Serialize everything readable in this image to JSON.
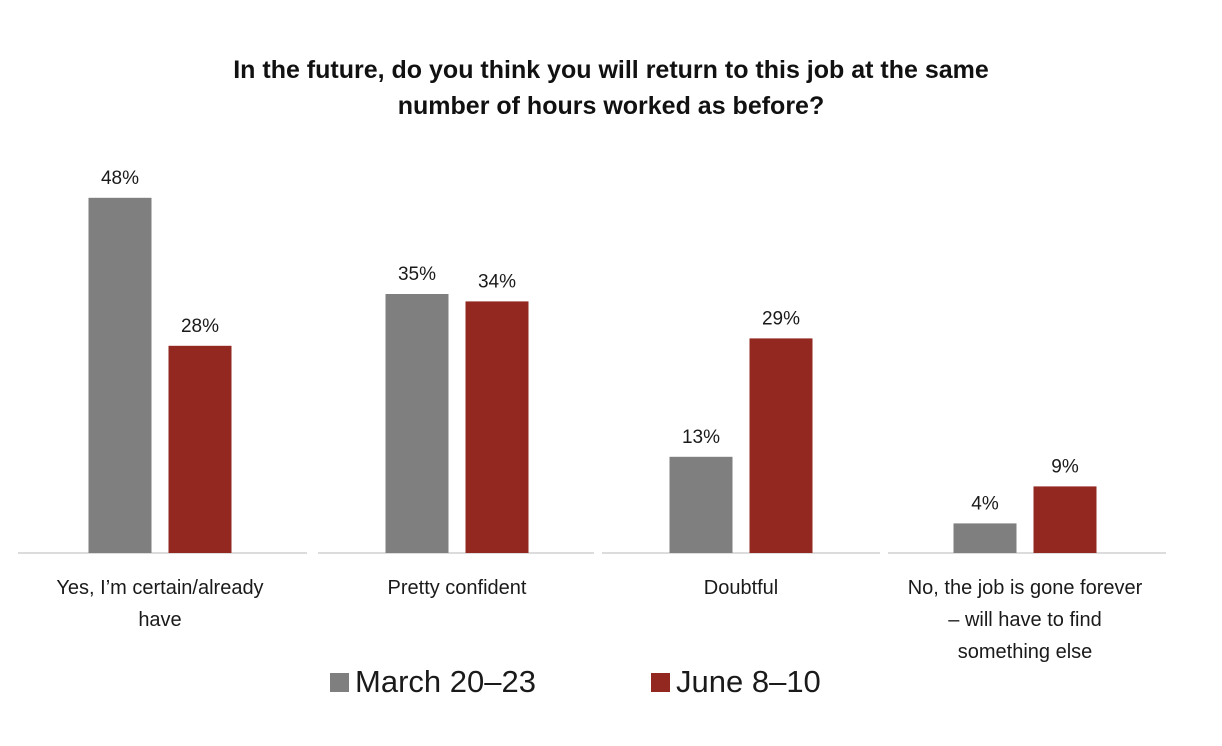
{
  "chart_data": {
    "type": "bar",
    "title_lines": [
      "In the future, do you think you will return to this job at the same",
      "number of hours worked as before?"
    ],
    "categories": [
      [
        "Yes, I’m certain/already",
        "have"
      ],
      [
        "Pretty confident"
      ],
      [
        "Doubtful"
      ],
      [
        "No, the job is gone forever",
        "– will have to find",
        "something else"
      ]
    ],
    "series": [
      {
        "name": "March 20–23",
        "color": "#7f7f7f",
        "values": [
          48,
          35,
          13,
          4
        ],
        "labels": [
          "48%",
          "35%",
          "13%",
          "4%"
        ]
      },
      {
        "name": "June 8–10",
        "color": "#922820",
        "values": [
          28,
          34,
          29,
          9
        ],
        "labels": [
          "28%",
          "34%",
          "29%",
          "9%"
        ]
      }
    ],
    "ylim": [
      0,
      50
    ],
    "grid": false,
    "legend": "bottom"
  }
}
